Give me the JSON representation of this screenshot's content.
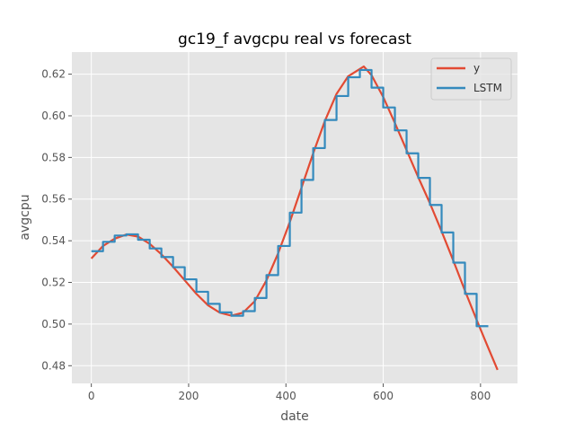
{
  "chart_data": {
    "type": "line",
    "title": "gc19_f avgcpu real vs forecast",
    "xlabel": "date",
    "ylabel": "avgcpu",
    "xlim": [
      -40,
      876
    ],
    "ylim": [
      0.4715,
      0.6306
    ],
    "xticks": [
      0,
      200,
      400,
      600,
      800
    ],
    "yticks": [
      0.48,
      0.5,
      0.52,
      0.54,
      0.56,
      0.58,
      0.6,
      0.62
    ],
    "ytick_labels": [
      "0.48",
      "0.50",
      "0.52",
      "0.54",
      "0.56",
      "0.58",
      "0.60",
      "0.62"
    ],
    "grid": true,
    "legend_position": "top-right",
    "series": [
      {
        "name": "y",
        "color": "#e24a33",
        "style": "smooth",
        "x": [
          0,
          24,
          48,
          72,
          96,
          120,
          144,
          168,
          192,
          216,
          240,
          264,
          288,
          312,
          336,
          360,
          384,
          408,
          432,
          456,
          480,
          504,
          528,
          552,
          560,
          576,
          600,
          624,
          648,
          672,
          696,
          720,
          744,
          768,
          792,
          816,
          835
        ],
        "values": [
          0.5315,
          0.5375,
          0.541,
          0.543,
          0.542,
          0.5385,
          0.5335,
          0.5275,
          0.521,
          0.5145,
          0.509,
          0.5055,
          0.504,
          0.5055,
          0.511,
          0.521,
          0.534,
          0.549,
          0.5655,
          0.582,
          0.5975,
          0.6105,
          0.619,
          0.6225,
          0.6237,
          0.6195,
          0.609,
          0.5965,
          0.5835,
          0.5705,
          0.558,
          0.5445,
          0.5305,
          0.516,
          0.502,
          0.4885,
          0.478
        ]
      },
      {
        "name": "LSTM",
        "color": "#348abd",
        "style": "step",
        "steps": [
          [
            0,
            24,
            0.535
          ],
          [
            24,
            48,
            0.5395
          ],
          [
            48,
            72,
            0.5425
          ],
          [
            72,
            96,
            0.5431
          ],
          [
            96,
            120,
            0.5405
          ],
          [
            120,
            144,
            0.5363
          ],
          [
            144,
            168,
            0.5322
          ],
          [
            168,
            192,
            0.5273
          ],
          [
            192,
            216,
            0.5215
          ],
          [
            216,
            240,
            0.5155
          ],
          [
            240,
            264,
            0.5097
          ],
          [
            264,
            288,
            0.5056
          ],
          [
            288,
            312,
            0.504
          ],
          [
            312,
            336,
            0.5062
          ],
          [
            336,
            360,
            0.5125
          ],
          [
            360,
            384,
            0.5235
          ],
          [
            384,
            408,
            0.5375
          ],
          [
            408,
            432,
            0.5535
          ],
          [
            432,
            456,
            0.5692
          ],
          [
            456,
            480,
            0.5845
          ],
          [
            480,
            504,
            0.598
          ],
          [
            504,
            528,
            0.6095
          ],
          [
            528,
            552,
            0.6185
          ],
          [
            552,
            576,
            0.622
          ],
          [
            576,
            600,
            0.6135
          ],
          [
            600,
            624,
            0.604
          ],
          [
            624,
            648,
            0.593
          ],
          [
            648,
            672,
            0.582
          ],
          [
            672,
            696,
            0.5702
          ],
          [
            696,
            720,
            0.5572
          ],
          [
            720,
            744,
            0.544
          ],
          [
            744,
            768,
            0.5295
          ],
          [
            768,
            792,
            0.5145
          ],
          [
            792,
            816,
            0.499
          ]
        ]
      }
    ]
  }
}
